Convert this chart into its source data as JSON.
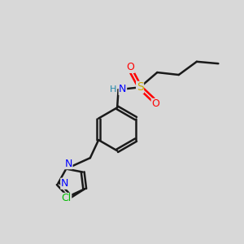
{
  "background_color": "#d8d8d8",
  "bond_color": "#1a1a1a",
  "atom_colors": {
    "N": "#0000ff",
    "S": "#ccaa00",
    "O": "#ff0000",
    "Cl": "#00bb00",
    "H": "#2288aa",
    "C": "#1a1a1a"
  },
  "figsize": [
    3.0,
    3.0
  ],
  "dpi": 100
}
